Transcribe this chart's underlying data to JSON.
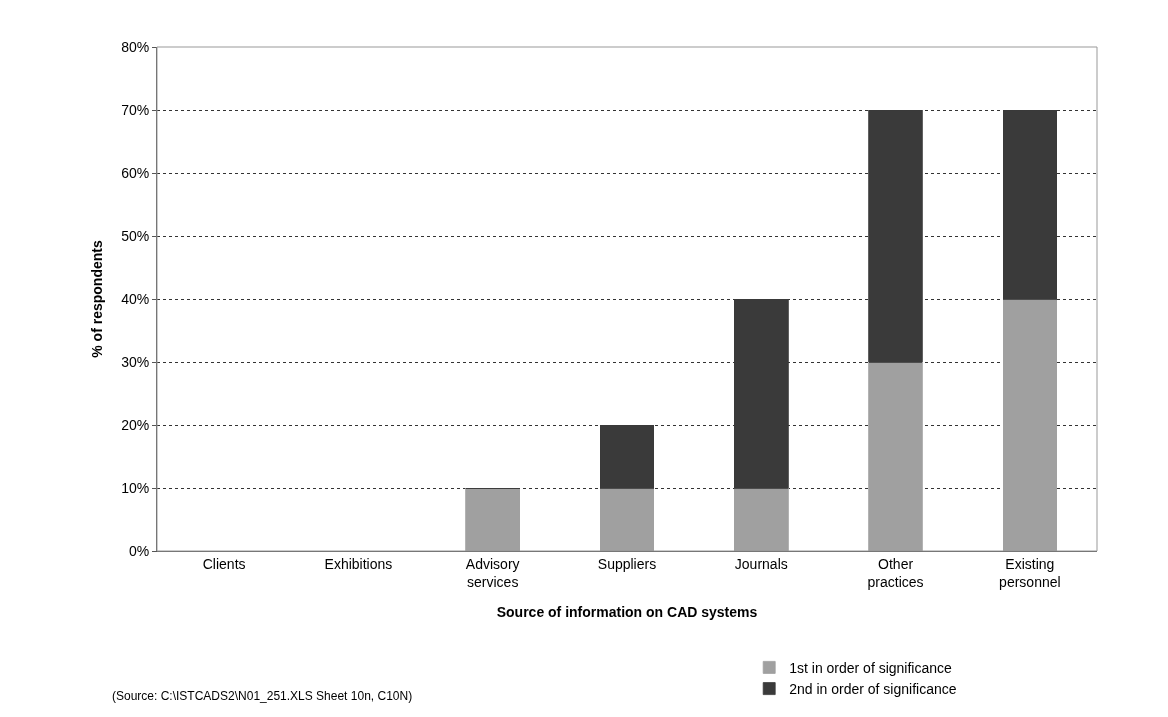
{
  "chart_data": {
    "type": "bar",
    "stacked": true,
    "xlabel": "Source of information on CAD systems",
    "ylabel": "% of respondents",
    "categories": [
      "Clients",
      "Exhibitions",
      "Advisory services",
      "Suppliers",
      "Journals",
      "Other practices",
      "Existing personnel"
    ],
    "series": [
      {
        "name": "1st in order of significance",
        "color": "#a0a0a0",
        "values": [
          0,
          0,
          10,
          10,
          10,
          30,
          40
        ]
      },
      {
        "name": "2nd in order of significance",
        "color": "#3a3a3a",
        "values": [
          0,
          0,
          0,
          10,
          30,
          40,
          30
        ]
      }
    ],
    "ylim": [
      0,
      80
    ],
    "yticks": [
      {
        "value": 0,
        "label": "0%"
      },
      {
        "value": 10,
        "label": "10%"
      },
      {
        "value": 20,
        "label": "20%"
      },
      {
        "value": 30,
        "label": "30%"
      },
      {
        "value": 40,
        "label": "40%"
      },
      {
        "value": 50,
        "label": "50%"
      },
      {
        "value": 60,
        "label": "60%"
      },
      {
        "value": 70,
        "label": "70%"
      },
      {
        "value": 80,
        "label": "80%"
      }
    ],
    "grid": "y",
    "legend": "bottom right",
    "annotations": [
      "(Source: C:\\ISTCADS2\\N01_251.XLS Sheet 10n, C10N)"
    ]
  }
}
